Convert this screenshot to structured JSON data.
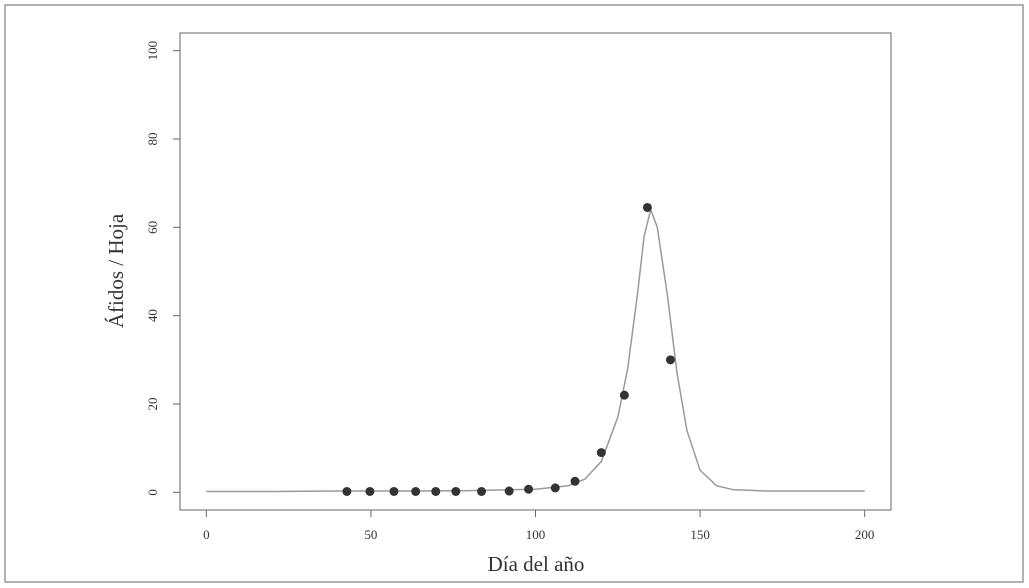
{
  "chart_data": {
    "type": "scatter",
    "x_label": "Día del año",
    "y_label": "Áfidos / Hoja",
    "x": [
      42.7,
      49.7,
      57,
      63.6,
      69.7,
      75.8,
      83.6,
      92,
      97.9,
      106,
      112,
      120,
      127,
      134,
      141
    ],
    "values": [
      0.2,
      0.2,
      0.2,
      0.2,
      0.2,
      0.2,
      0.2,
      0.3,
      0.7,
      1,
      2.5,
      9,
      22,
      64.5,
      30
    ],
    "color": "#333333",
    "line": {
      "x": [
        0,
        20,
        40,
        60,
        80,
        100,
        110,
        115,
        120,
        125,
        128,
        131,
        133,
        135,
        137,
        140,
        143,
        146,
        150,
        155,
        160,
        170,
        180,
        200
      ],
      "values": [
        0.2,
        0.2,
        0.3,
        0.3,
        0.4,
        0.7,
        1.5,
        3,
        7,
        17,
        28,
        45,
        58,
        64,
        60,
        45,
        27,
        14,
        5,
        1.5,
        0.6,
        0.3,
        0.3,
        0.3
      ],
      "color": "#9a9a9a"
    },
    "xlim": [
      -8,
      208
    ],
    "ylim": [
      -4,
      104
    ],
    "xticks": [
      0,
      50,
      100,
      150,
      200
    ],
    "yticks": [
      0,
      20,
      40,
      60,
      80,
      100
    ]
  }
}
